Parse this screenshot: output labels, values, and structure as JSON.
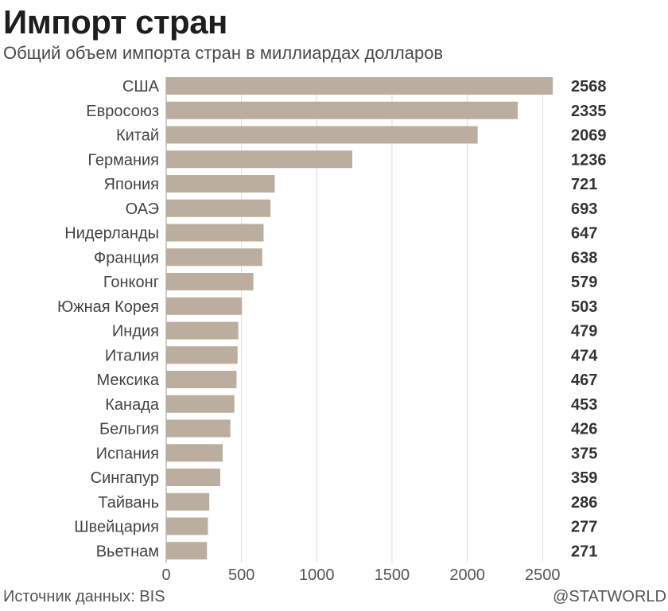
{
  "chart_data": {
    "type": "bar",
    "orientation": "horizontal",
    "title": "Импорт стран",
    "subtitle": "Общий объем импорта стран в миллиардах долларов",
    "categories": [
      "США",
      "Евросоюз",
      "Китай",
      "Германия",
      "Япония",
      "ОАЭ",
      "Нидерланды",
      "Франция",
      "Гонконг",
      "Южная Корея",
      "Индия",
      "Италия",
      "Мексика",
      "Канада",
      "Бельгия",
      "Испания",
      "Сингапур",
      "Тайвань",
      "Швейцария",
      "Вьетнам"
    ],
    "values": [
      2568,
      2335,
      2069,
      1236,
      721,
      693,
      647,
      638,
      579,
      503,
      479,
      474,
      467,
      453,
      426,
      375,
      359,
      286,
      277,
      271
    ],
    "xlim": [
      0,
      2568
    ],
    "xticks": [
      0,
      500,
      1000,
      1500,
      2000,
      2500
    ],
    "grid": true,
    "data_labels": true,
    "bar_color": "#bcae9e"
  },
  "footer": {
    "source": "Источник данных: BIS",
    "credit": "@STATWORLD"
  }
}
